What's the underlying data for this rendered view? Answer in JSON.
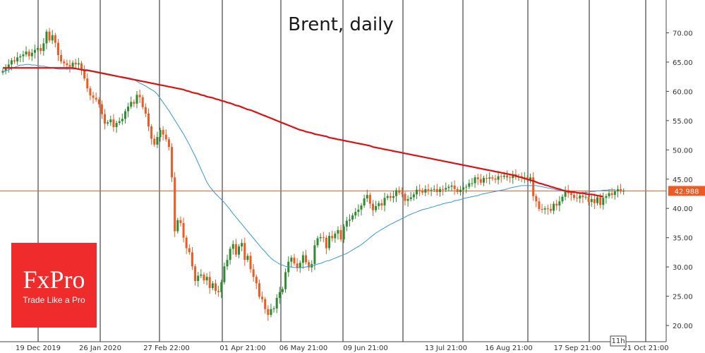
{
  "chart_data": {
    "type": "candlestick",
    "title": "Brent, daily",
    "ylim": [
      18.0,
      76.0
    ],
    "yticks": [
      20,
      25,
      30,
      35,
      40,
      45,
      50,
      55,
      60,
      65,
      70
    ],
    "ytick_labels": [
      "20.00",
      "25.00",
      "30.00",
      "35.00",
      "40.00",
      "45.00",
      "50.00",
      "55.00",
      "60.00",
      "65.00",
      "70.00"
    ],
    "xtick_labels": [
      "19 Dec 2019",
      "26 Jan 2020",
      "27 Feb 22:00",
      "01 Apr 21:00",
      "06 May 21:00",
      "09 Jun 21:00",
      "13 Jul 21:00",
      "16 Aug 21:00",
      "17 Sep 21:00",
      "21 Oct 21:00"
    ],
    "period_label": "11h",
    "current_price": 42.988,
    "current_price_label": "42.988",
    "close": [
      63.5,
      64.0,
      64.6,
      65.3,
      65.1,
      65.8,
      66.0,
      66.3,
      66.8,
      66.0,
      66.6,
      67.1,
      67.4,
      66.9,
      68.2,
      70.2,
      68.7,
      69.6,
      68.3,
      66.2,
      65.1,
      64.8,
      64.5,
      64.2,
      64.9,
      64.6,
      64.8,
      63.8,
      62.2,
      60.5,
      59.3,
      58.9,
      58.6,
      57.8,
      56.1,
      54.5,
      54.7,
      55.2,
      53.9,
      54.6,
      54.9,
      55.3,
      56.6,
      57.4,
      58.2,
      57.9,
      59.4,
      59.0,
      57.3,
      56.2,
      54.0,
      51.9,
      50.9,
      52.2,
      53.4,
      52.6,
      51.8,
      50.5,
      45.3,
      36.1,
      38.0,
      37.5,
      35.0,
      33.2,
      32.5,
      30.1,
      27.6,
      28.5,
      28.7,
      27.7,
      28.3,
      26.4,
      27.2,
      25.9,
      25.7,
      27.4,
      30.1,
      31.2,
      33.1,
      33.9,
      32.1,
      33.5,
      34.1,
      31.2,
      31.9,
      29.6,
      28.3,
      27.2,
      24.9,
      24.5,
      22.8,
      21.8,
      22.8,
      22.9,
      24.7,
      25.7,
      26.2,
      29.1,
      30.9,
      31.6,
      30.6,
      29.8,
      30.7,
      32.0,
      30.8,
      29.9,
      30.5,
      33.7,
      34.9,
      35.1,
      35.0,
      33.2,
      35.3,
      34.9,
      35.7,
      36.3,
      34.7,
      36.9,
      37.9,
      38.1,
      38.8,
      39.4,
      39.8,
      40.5,
      41.7,
      42.3,
      40.8,
      39.7,
      40.4,
      40.9,
      40.5,
      41.8,
      42.1,
      41.8,
      42.1,
      43.1,
      42.7,
      42.5,
      41.3,
      41.6,
      41.9,
      42.4,
      43.2,
      43.1,
      42.7,
      43.3,
      43.1,
      43.2,
      43.3,
      42.8,
      43.3,
      43.2,
      43.5,
      43.7,
      43.9,
      43.3,
      42.8,
      43.2,
      43.6,
      43.7,
      44.3,
      44.3,
      45.3,
      45.0,
      44.4,
      45.2,
      45.1,
      45.3,
      45.1,
      44.9,
      45.5,
      45.4,
      45.6,
      45.3,
      45.2,
      45.8,
      45.3,
      45.5,
      45.3,
      45.3,
      44.9,
      45.3,
      42.1,
      41.2,
      39.9,
      39.8,
      40.0,
      39.9,
      39.6,
      40.8,
      40.5,
      41.2,
      42.0,
      43.1,
      42.6,
      42.3,
      41.8,
      41.7,
      42.2,
      41.9,
      42.0,
      41.1,
      41.6,
      40.9,
      41.9,
      40.6,
      41.8,
      42.1,
      42.6,
      42.3,
      42.9,
      43.3,
      42.9,
      43.0
    ],
    "ma_short": [
      63.3,
      63.5,
      63.7,
      63.9,
      64.1,
      64.3,
      64.5,
      64.5,
      64.6,
      64.6,
      64.5,
      64.5,
      64.4,
      64.3,
      64.3,
      64.2,
      64.1,
      64.0,
      63.9,
      63.8,
      63.8,
      63.8,
      63.8,
      63.8,
      63.8,
      63.8,
      63.8,
      63.8,
      63.7,
      63.7,
      63.6,
      63.5,
      63.4,
      63.3,
      63.2,
      63.1,
      63.0,
      62.9,
      62.7,
      62.6,
      62.5,
      62.5,
      62.4,
      62.3,
      62.2,
      62.0,
      61.7,
      61.4,
      61.2,
      60.9,
      60.6,
      60.3,
      60.0,
      59.5,
      58.8,
      58.1,
      57.4,
      56.7,
      55.9,
      55.1,
      54.3,
      53.5,
      52.7,
      51.8,
      50.9,
      49.9,
      48.9,
      47.8,
      46.7,
      45.6,
      44.5,
      43.7,
      43.1,
      42.5,
      42.0,
      41.5,
      41.0,
      40.4,
      39.8,
      39.1,
      38.5,
      37.9,
      37.3,
      36.7,
      36.1,
      35.5,
      34.9,
      34.3,
      33.7,
      33.1,
      32.6,
      32.0,
      31.5,
      31.1,
      30.8,
      30.5,
      30.3,
      30.1,
      30.0,
      30.0,
      29.9,
      29.9,
      29.9,
      29.9,
      30.0,
      30.1,
      30.2,
      30.3,
      30.5,
      30.6,
      30.8,
      31.0,
      31.1,
      31.3,
      31.5,
      31.7,
      31.9,
      32.1,
      32.3,
      32.6,
      32.9,
      33.2,
      33.5,
      33.8,
      34.2,
      34.6,
      35.0,
      35.4,
      35.8,
      36.1,
      36.4,
      36.7,
      37.0,
      37.3,
      37.5,
      37.8,
      38.0,
      38.3,
      38.5,
      38.8,
      39.0,
      39.2,
      39.4,
      39.6,
      39.8,
      39.9,
      40.0,
      40.2,
      40.3,
      40.5,
      40.6,
      40.8,
      40.9,
      41.0,
      41.1,
      41.3,
      41.4,
      41.5,
      41.7,
      41.8,
      41.9,
      42.0,
      42.1,
      42.2,
      42.4,
      42.5,
      42.6,
      42.7,
      42.8,
      42.9,
      43.0,
      43.1,
      43.2,
      43.3,
      43.5,
      43.6,
      43.7,
      43.8,
      43.9,
      43.9,
      43.9,
      43.9,
      43.9,
      43.9,
      43.8,
      43.7,
      43.6,
      43.5,
      43.4,
      43.3,
      43.2,
      43.1,
      43.0,
      42.9,
      42.8,
      42.8,
      42.8,
      42.7,
      42.7,
      42.7,
      42.7,
      42.8,
      42.9,
      42.9,
      43.0,
      43.0,
      43.1,
      43.1,
      43.2,
      43.2,
      43.2
    ],
    "ma_long": [
      64.0,
      64.0,
      64.0,
      64.0,
      64.0,
      64.0,
      64.0,
      64.0,
      64.0,
      64.0,
      64.0,
      64.0,
      64.0,
      64.0,
      64.0,
      64.0,
      64.0,
      64.0,
      64.0,
      64.0,
      64.0,
      64.0,
      64.0,
      64.0,
      64.0,
      63.9,
      63.8,
      63.7,
      63.6,
      63.6,
      63.5,
      63.4,
      63.3,
      63.2,
      63.1,
      63.0,
      62.9,
      62.8,
      62.7,
      62.6,
      62.5,
      62.4,
      62.3,
      62.2,
      62.1,
      62.0,
      61.9,
      61.8,
      61.7,
      61.6,
      61.5,
      61.4,
      61.3,
      61.2,
      61.1,
      61.0,
      60.9,
      60.8,
      60.7,
      60.6,
      60.5,
      60.4,
      60.3,
      60.1,
      60.0,
      59.8,
      59.7,
      59.6,
      59.4,
      59.3,
      59.1,
      59.0,
      58.9,
      58.7,
      58.6,
      58.4,
      58.3,
      58.1,
      58.0,
      57.8,
      57.6,
      57.5,
      57.3,
      57.1,
      56.9,
      56.8,
      56.6,
      56.4,
      56.2,
      56.0,
      55.8,
      55.6,
      55.4,
      55.2,
      55.0,
      54.8,
      54.6,
      54.4,
      54.2,
      54.0,
      53.8,
      53.6,
      53.4,
      53.3,
      53.1,
      53.0,
      52.9,
      52.7,
      52.6,
      52.5,
      52.4,
      52.3,
      52.1,
      52.0,
      51.9,
      51.8,
      51.7,
      51.6,
      51.5,
      51.4,
      51.3,
      51.2,
      51.1,
      51.0,
      50.9,
      50.8,
      50.7,
      50.5,
      50.4,
      50.3,
      50.2,
      50.1,
      50.0,
      49.9,
      49.8,
      49.7,
      49.6,
      49.5,
      49.4,
      49.3,
      49.2,
      49.1,
      49.0,
      48.9,
      48.8,
      48.7,
      48.6,
      48.5,
      48.4,
      48.3,
      48.2,
      48.1,
      48.0,
      47.9,
      47.8,
      47.7,
      47.6,
      47.5,
      47.4,
      47.3,
      47.2,
      47.1,
      47.0,
      46.9,
      46.8,
      46.7,
      46.6,
      46.5,
      46.4,
      46.3,
      46.2,
      46.1,
      46.0,
      45.9,
      45.8,
      45.7,
      45.6,
      45.4,
      45.3,
      45.1,
      45.0,
      44.8,
      44.7,
      44.5,
      44.3,
      44.2,
      44.0,
      43.9,
      43.7,
      43.6,
      43.4,
      43.3,
      43.1,
      43.0,
      42.9,
      42.8,
      42.8,
      42.7,
      42.6,
      42.6,
      42.5,
      42.4,
      42.4,
      42.3,
      42.2,
      42.1,
      42.0
    ],
    "up_color": "#2e8b2e",
    "down_color": "#ef5a23",
    "ma_short_color": "#3399dd",
    "ma_long_color": "#dd1111",
    "price_line_color": "#ef5a23",
    "grid": "vertical"
  },
  "logo": {
    "name": "FxPro",
    "tagline": "Trade Like a Pro",
    "color": "#ef2b2b"
  }
}
